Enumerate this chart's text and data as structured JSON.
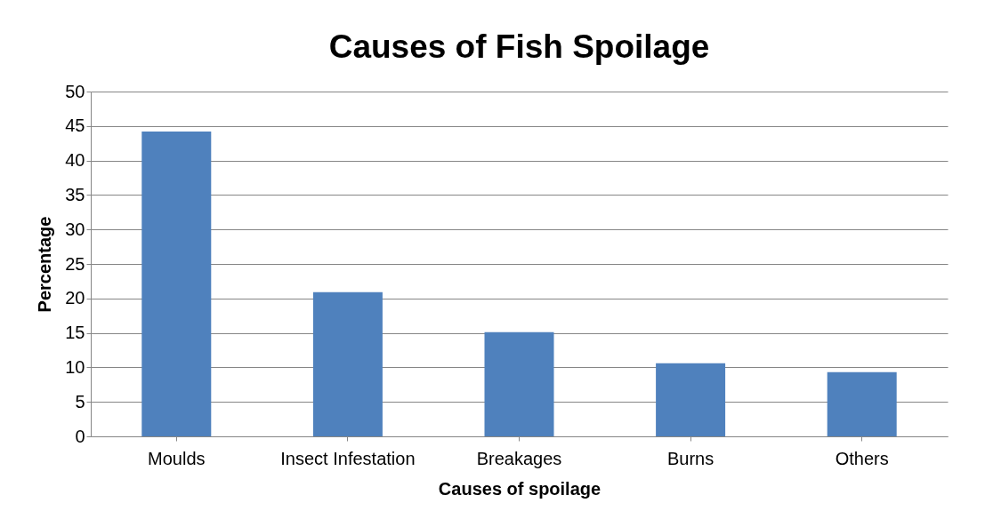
{
  "chart_data": {
    "type": "bar",
    "title": "Causes of Fish Spoilage",
    "xlabel": "Causes of spoilage",
    "ylabel": "Percentage",
    "categories": [
      "Moulds",
      "Insect Infestation",
      "Breakages",
      "Burns",
      "Others"
    ],
    "values": [
      44.2,
      20.9,
      15.1,
      10.6,
      9.3
    ],
    "color": "#4f81bd",
    "ylim": [
      0,
      50
    ],
    "yticks": [
      0,
      5,
      10,
      15,
      20,
      25,
      30,
      35,
      40,
      45,
      50
    ],
    "grid": "y"
  }
}
